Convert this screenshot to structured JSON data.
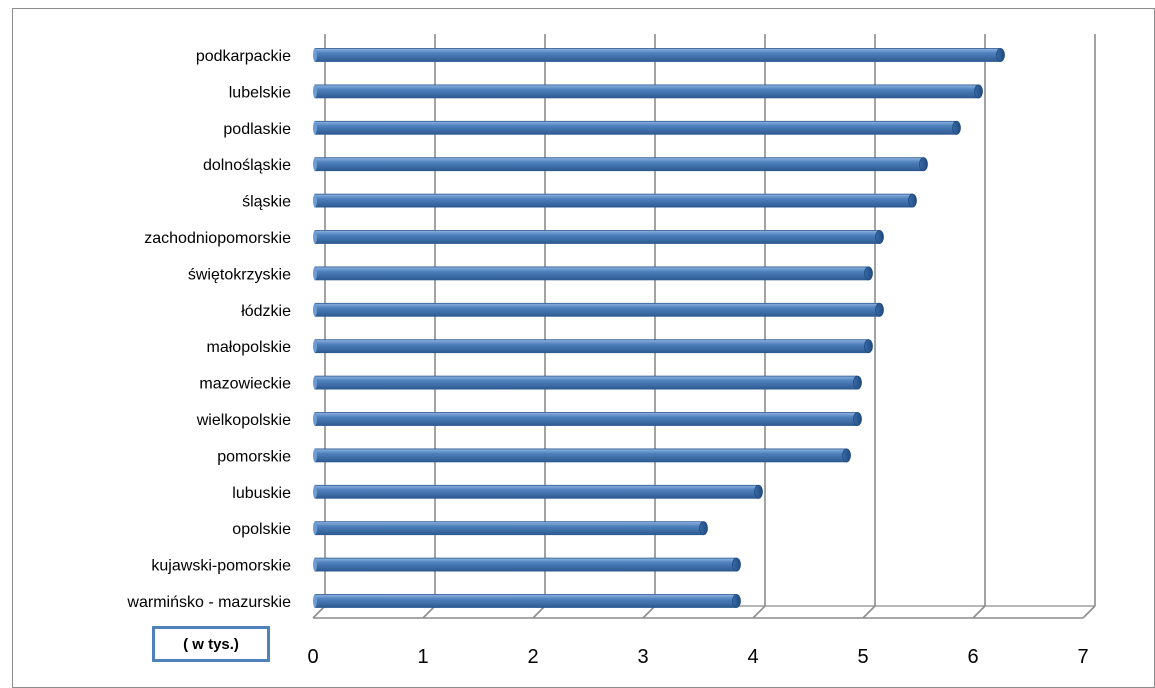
{
  "chart_data": {
    "type": "bar",
    "orientation": "horizontal",
    "categories": [
      "podkarpackie",
      "lubelskie",
      "podlaskie",
      "dolnośląskie",
      "śląskie",
      "zachodniopomorskie",
      "świętokrzyskie",
      "łódzkie",
      "małopolskie",
      "mazowieckie",
      "wielkopolskie",
      "pomorskie",
      "lubuskie",
      "opolskie",
      "kujawski-pomorskie",
      "warmińsko - mazurskie"
    ],
    "values": [
      6.25,
      6.05,
      5.85,
      5.55,
      5.45,
      5.15,
      5.05,
      5.15,
      5.05,
      4.95,
      4.95,
      4.85,
      4.05,
      3.55,
      3.85,
      3.85
    ],
    "xlim": [
      0,
      7
    ],
    "xticks": [
      "0",
      "1",
      "2",
      "3",
      "4",
      "5",
      "6",
      "7"
    ],
    "grid": true,
    "bar_color": "#4f81bd",
    "unit_label": "( w tys.)",
    "title": "",
    "xlabel": "",
    "ylabel": ""
  }
}
